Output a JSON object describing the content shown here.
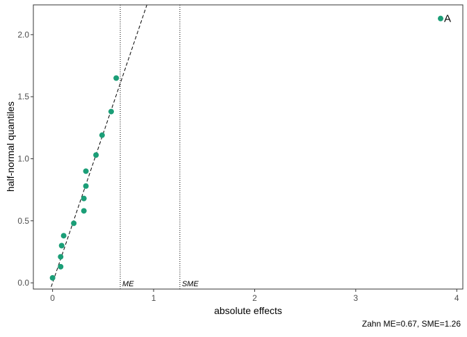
{
  "chart_data": {
    "type": "scatter",
    "title": "",
    "xlabel": "absolute effects",
    "ylabel": "half-normal quantiles",
    "caption": "Zahn ME=0.67, SME=1.26",
    "xlim": [
      -0.19,
      4.06
    ],
    "ylim": [
      -0.05,
      2.24
    ],
    "x_ticks": [
      0,
      1,
      2,
      3,
      4
    ],
    "x_tick_labels": [
      "0",
      "1",
      "2",
      "3",
      "4"
    ],
    "y_ticks": [
      0.0,
      0.5,
      1.0,
      1.5,
      2.0
    ],
    "y_tick_labels": [
      "0.0",
      "0.5",
      "1.0",
      "1.5",
      "2.0"
    ],
    "grid": false,
    "legend": "none",
    "colors": {
      "points": "#1b9e77",
      "lines": "#000000",
      "panel_border": "#333333"
    },
    "points": [
      {
        "x": 0.0,
        "y": 0.04
      },
      {
        "x": 0.08,
        "y": 0.13
      },
      {
        "x": 0.08,
        "y": 0.21
      },
      {
        "x": 0.09,
        "y": 0.3
      },
      {
        "x": 0.11,
        "y": 0.38
      },
      {
        "x": 0.21,
        "y": 0.48
      },
      {
        "x": 0.31,
        "y": 0.58
      },
      {
        "x": 0.31,
        "y": 0.68
      },
      {
        "x": 0.33,
        "y": 0.78
      },
      {
        "x": 0.33,
        "y": 0.9
      },
      {
        "x": 0.43,
        "y": 1.03
      },
      {
        "x": 0.49,
        "y": 1.19
      },
      {
        "x": 0.58,
        "y": 1.38
      },
      {
        "x": 0.63,
        "y": 1.65
      },
      {
        "x": 3.84,
        "y": 2.13
      }
    ],
    "point_labels": [
      {
        "x": 3.84,
        "y": 2.13,
        "text": "A"
      }
    ],
    "reference_line": {
      "slope": 2.4,
      "intercept": 0.0,
      "style": "dashed"
    },
    "vertical_lines": [
      {
        "x": 0.67,
        "label": "ME",
        "style": "dotted"
      },
      {
        "x": 1.26,
        "label": "SME",
        "style": "dotted"
      }
    ]
  }
}
